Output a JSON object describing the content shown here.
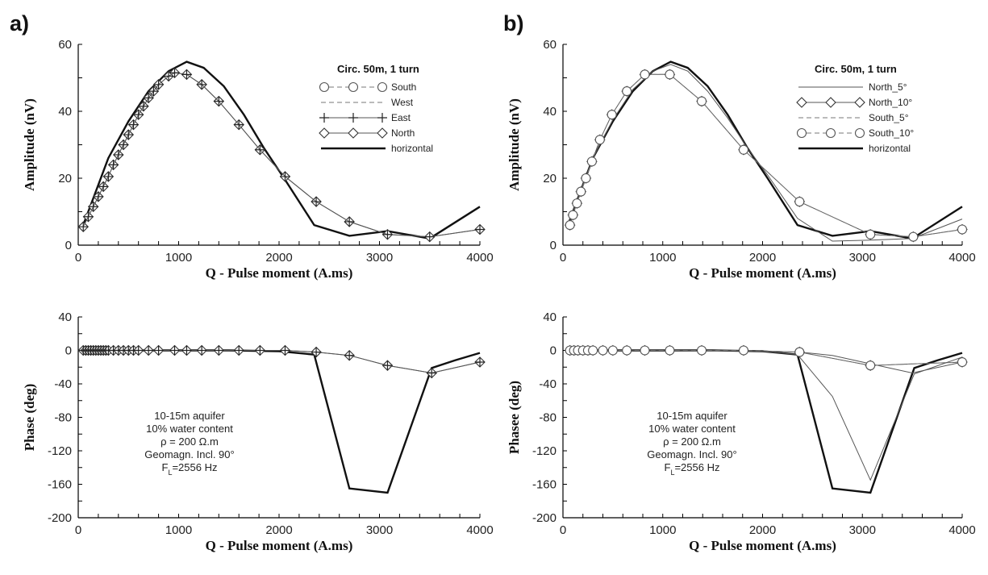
{
  "panel_labels": [
    "a)",
    "b)"
  ],
  "chart_data": [
    {
      "id": "a_amp",
      "type": "line",
      "ylabel": "Amplitude (nV)",
      "xlabel": "Q - Pulse moment (A.ms)",
      "xlim": [
        0,
        4000
      ],
      "ylim": [
        0,
        60
      ],
      "xticks": [
        0,
        1000,
        2000,
        3000,
        4000
      ],
      "yticks": [
        0,
        20,
        40,
        60
      ],
      "legend": {
        "title": "Circ. 50m, 1 turn",
        "placement": "top-right",
        "entries": [
          {
            "label": "South",
            "style": "dash",
            "marker": "circle"
          },
          {
            "label": "West",
            "style": "dash",
            "marker": "none"
          },
          {
            "label": "East",
            "style": "thin",
            "marker": "plus"
          },
          {
            "label": "North",
            "style": "thin",
            "marker": "diamond"
          },
          {
            "label": "horizontal",
            "style": "thick",
            "marker": "none"
          }
        ]
      },
      "series": [
        {
          "name": "horizontal",
          "style": "thick",
          "x": [
            50,
            300,
            500,
            700,
            900,
            1080,
            1250,
            1450,
            1650,
            1850,
            2050,
            2350,
            2700,
            3080,
            3500,
            4000
          ],
          "y": [
            6,
            26,
            37,
            46,
            52,
            54.8,
            53,
            47.5,
            39,
            29,
            20,
            6,
            2.8,
            4.2,
            2,
            11.5
          ]
        },
        {
          "name": "North",
          "style": "thin",
          "marker": "diamond",
          "x": [
            50,
            100,
            150,
            200,
            250,
            300,
            350,
            400,
            450,
            500,
            550,
            600,
            650,
            700,
            750,
            800,
            900,
            960,
            1080,
            1230,
            1400,
            1600,
            1810,
            2060,
            2370,
            2700,
            3080,
            3500,
            4000
          ],
          "y": [
            5.5,
            8.5,
            11.5,
            14.5,
            17.5,
            20.5,
            24,
            27,
            30,
            33,
            36,
            39,
            41.5,
            44,
            46,
            48,
            50.5,
            51.5,
            51,
            48,
            43,
            36,
            28.5,
            20.5,
            13,
            7,
            3.2,
            2.5,
            4.7
          ]
        },
        {
          "name": "East",
          "style": "thin",
          "marker": "plus",
          "x": [
            50,
            100,
            150,
            200,
            250,
            300,
            350,
            400,
            450,
            500,
            550,
            600,
            650,
            700,
            750,
            800,
            900,
            960,
            1080,
            1230,
            1400,
            1600,
            1810,
            2060,
            2370,
            2700,
            3080,
            3500,
            4000
          ],
          "y": [
            5.5,
            8.5,
            11.5,
            14.5,
            17.5,
            20.5,
            24,
            27,
            30,
            33,
            36,
            39,
            41.5,
            44,
            46,
            48,
            50.5,
            51.5,
            51,
            48,
            43,
            36,
            28.5,
            20.5,
            13,
            7,
            3.2,
            2.5,
            4.7
          ]
        }
      ]
    },
    {
      "id": "b_amp",
      "type": "line",
      "ylabel": "Amplitude (nV)",
      "xlabel": "Q - Pulse moment (A.ms)",
      "xlim": [
        0,
        4000
      ],
      "ylim": [
        0,
        60
      ],
      "xticks": [
        0,
        1000,
        2000,
        3000,
        4000
      ],
      "yticks": [
        0,
        20,
        40,
        60
      ],
      "legend": {
        "title": "Circ. 50m, 1 turn",
        "placement": "top-right",
        "entries": [
          {
            "label": "North_5°",
            "style": "thin",
            "marker": "none"
          },
          {
            "label": "North_10°",
            "style": "thin",
            "marker": "diamond"
          },
          {
            "label": "South_5°",
            "style": "dash",
            "marker": "none"
          },
          {
            "label": "South_10°",
            "style": "dash",
            "marker": "circle"
          },
          {
            "label": "horizontal",
            "style": "thick",
            "marker": "none"
          }
        ]
      },
      "series": [
        {
          "name": "horizontal",
          "style": "thick",
          "x": [
            50,
            300,
            500,
            700,
            900,
            1080,
            1250,
            1450,
            1650,
            1850,
            2050,
            2350,
            2700,
            3080,
            3500,
            4000
          ],
          "y": [
            6,
            26,
            37,
            46,
            52,
            54.8,
            53,
            47.5,
            39,
            29,
            20,
            6,
            2.8,
            4.2,
            2,
            11.5
          ]
        },
        {
          "name": "North_5°",
          "style": "thin",
          "x": [
            50,
            300,
            500,
            700,
            900,
            1080,
            1250,
            1450,
            1650,
            1850,
            2050,
            2350,
            2700,
            3080,
            3500,
            4000
          ],
          "y": [
            6,
            26,
            37.5,
            46.5,
            52,
            54,
            52,
            46,
            38,
            29,
            21,
            8,
            1.2,
            1.5,
            2,
            7.8
          ]
        },
        {
          "name": "North_10°",
          "style": "thin",
          "marker": "diamond",
          "x": [
            70,
            100,
            140,
            180,
            230,
            290,
            370,
            490,
            640,
            820,
            1070,
            1390,
            1810,
            2370,
            3080,
            3510,
            4000
          ],
          "y": [
            6,
            9,
            12.5,
            16,
            20,
            25,
            31.5,
            39,
            46,
            51,
            51,
            43,
            28.5,
            13,
            3.2,
            2.5,
            4.7
          ]
        },
        {
          "name": "South_10°",
          "style": "dash",
          "marker": "circle",
          "x": [
            70,
            100,
            140,
            180,
            230,
            290,
            370,
            490,
            640,
            820,
            1070,
            1390,
            1810,
            2370,
            3080,
            3510,
            4000
          ],
          "y": [
            6,
            9,
            12.5,
            16,
            20,
            25,
            31.5,
            39,
            46,
            51,
            51,
            43,
            28.5,
            13,
            3.2,
            2.5,
            4.7
          ]
        }
      ]
    },
    {
      "id": "a_phase",
      "type": "line",
      "ylabel": "Phase (deg)",
      "xlabel": "Q - Pulse moment (A.ms)",
      "xlim": [
        0,
        4000
      ],
      "ylim": [
        -200,
        40
      ],
      "xticks": [
        0,
        1000,
        2000,
        3000,
        4000
      ],
      "yticks": [
        -200,
        -160,
        -120,
        -80,
        -40,
        0,
        40
      ],
      "annotation": [
        "10-15m aquifer",
        "10% water content",
        "ρ = 200 Ω.m",
        "Geomagn. Incl. 90°",
        "FL=2556 Hz"
      ],
      "series": [
        {
          "name": "horizontal",
          "style": "thick",
          "x": [
            50,
            500,
            1000,
            1500,
            2000,
            2350,
            2700,
            3080,
            3520,
            3750,
            4000
          ],
          "y": [
            0,
            0,
            0,
            0,
            -1,
            -5,
            -165,
            -170,
            -21,
            -12,
            -3
          ]
        },
        {
          "name": "North",
          "style": "thin",
          "marker": "diamond",
          "x": [
            50,
            75,
            100,
            125,
            150,
            175,
            200,
            225,
            250,
            275,
            300,
            350,
            400,
            450,
            500,
            550,
            600,
            700,
            800,
            960,
            1080,
            1230,
            1400,
            1600,
            1810,
            2060,
            2370,
            2700,
            3080,
            3520,
            4000
          ],
          "y": [
            0,
            0,
            0,
            0,
            0,
            0,
            0,
            0,
            0,
            0,
            0,
            0,
            0,
            0,
            0,
            0,
            0,
            0,
            0,
            0,
            0,
            0,
            0,
            0,
            0,
            0,
            -2,
            -6,
            -18,
            -27,
            -14
          ]
        },
        {
          "name": "East",
          "style": "thin",
          "marker": "plus",
          "x": [
            50,
            75,
            100,
            125,
            150,
            175,
            200,
            225,
            250,
            275,
            300,
            350,
            400,
            450,
            500,
            550,
            600,
            700,
            800,
            960,
            1080,
            1230,
            1400,
            1600,
            1810,
            2060,
            2370,
            2700,
            3080,
            3520,
            4000
          ],
          "y": [
            0,
            0,
            0,
            0,
            0,
            0,
            0,
            0,
            0,
            0,
            0,
            0,
            0,
            0,
            0,
            0,
            0,
            0,
            0,
            0,
            0,
            0,
            0,
            0,
            0,
            0,
            -2,
            -6,
            -18,
            -27,
            -14
          ]
        }
      ]
    },
    {
      "id": "b_phase",
      "type": "line",
      "ylabel": "Phasee (deg)",
      "xlabel": "Q - Pulse moment (A.ms)",
      "xlim": [
        0,
        4000
      ],
      "ylim": [
        -200,
        40
      ],
      "xticks": [
        0,
        1000,
        2000,
        3000,
        4000
      ],
      "yticks": [
        -200,
        -160,
        -120,
        -80,
        -40,
        0,
        40
      ],
      "annotation": [
        "10-15m aquifer",
        "10% water content",
        "ρ = 200 Ω.m",
        "Geomagn. Incl. 90°",
        "FL=2556 Hz"
      ],
      "series": [
        {
          "name": "horizontal",
          "style": "thick",
          "x": [
            50,
            500,
            1000,
            1500,
            2000,
            2350,
            2700,
            3080,
            3520,
            3750,
            4000
          ],
          "y": [
            0,
            0,
            0,
            0,
            -1,
            -5,
            -165,
            -170,
            -21,
            -12,
            -3
          ]
        },
        {
          "name": "South_5°",
          "style": "thin",
          "x": [
            50,
            1000,
            2000,
            2350,
            2700,
            3080,
            3520,
            4000
          ],
          "y": [
            0,
            0,
            -1,
            -5,
            -55,
            -155,
            -28,
            -8
          ]
        },
        {
          "name": "North_10°",
          "style": "thin",
          "marker": "diamond",
          "x": [
            70,
            110,
            150,
            200,
            250,
            300,
            400,
            500,
            640,
            820,
            1070,
            1390,
            1810,
            2370,
            3080,
            4000
          ],
          "y": [
            0,
            0,
            0,
            0,
            0,
            0,
            0,
            0,
            0,
            0,
            0,
            0,
            0,
            -2,
            -18,
            -14
          ]
        },
        {
          "name": "North_5°",
          "style": "thin",
          "x": [
            2370,
            2700,
            3080,
            3500,
            4000
          ],
          "y": [
            -2,
            -6,
            -16,
            -27,
            -14
          ]
        },
        {
          "name": "South_10°",
          "style": "dash",
          "marker": "circle",
          "x": [
            70,
            110,
            150,
            200,
            250,
            300,
            400,
            500,
            640,
            820,
            1070,
            1390,
            1810,
            2370,
            3080,
            4000
          ],
          "y": [
            0,
            0,
            0,
            0,
            0,
            0,
            0,
            0,
            0,
            0,
            0,
            0,
            0,
            -2,
            -18,
            -14
          ]
        }
      ]
    }
  ]
}
